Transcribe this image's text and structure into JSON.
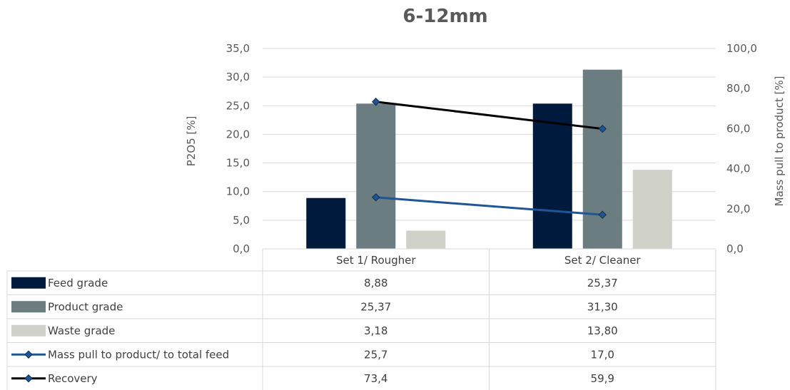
{
  "chart_data": {
    "type": "bar",
    "title": "6-12mm",
    "categories": [
      "Set 1/ Rougher",
      "Set 2/ Cleaner"
    ],
    "ylabel": "P2O5 [%]",
    "ylim": [
      0,
      35
    ],
    "yticks": [
      "0,0",
      "5,0",
      "10,0",
      "15,0",
      "20,0",
      "25,0",
      "30,0",
      "35,0"
    ],
    "y2label": "Mass pull to product [%]",
    "y2lim": [
      0,
      100
    ],
    "y2ticks": [
      "0,0",
      "20,0",
      "40,0",
      "60,0",
      "80,0",
      "100,0"
    ],
    "grid": true,
    "legend": "data-table",
    "series": [
      {
        "name": "Feed grade",
        "kind": "bar",
        "axis": "left",
        "color": "#001a3d",
        "values": [
          8.88,
          25.37
        ],
        "labels": [
          "8,88",
          "25,37"
        ]
      },
      {
        "name": "Product grade",
        "kind": "bar",
        "axis": "left",
        "color": "#6b7d80",
        "values": [
          25.37,
          31.3
        ],
        "labels": [
          "25,37",
          "31,30"
        ]
      },
      {
        "name": "Waste grade",
        "kind": "bar",
        "axis": "left",
        "color": "#d0d1c9",
        "values": [
          3.18,
          13.8
        ],
        "labels": [
          "3,18",
          "13,80"
        ]
      },
      {
        "name": "Mass pull to product/ to total feed",
        "kind": "line",
        "axis": "right",
        "color": "#1f5596",
        "values": [
          25.7,
          17.0
        ],
        "labels": [
          "25,7",
          "17,0"
        ]
      },
      {
        "name": "Recovery",
        "kind": "line",
        "axis": "right",
        "color": "#000000",
        "values": [
          73.4,
          59.9
        ],
        "labels": [
          "73,4",
          "59,9"
        ]
      }
    ]
  }
}
